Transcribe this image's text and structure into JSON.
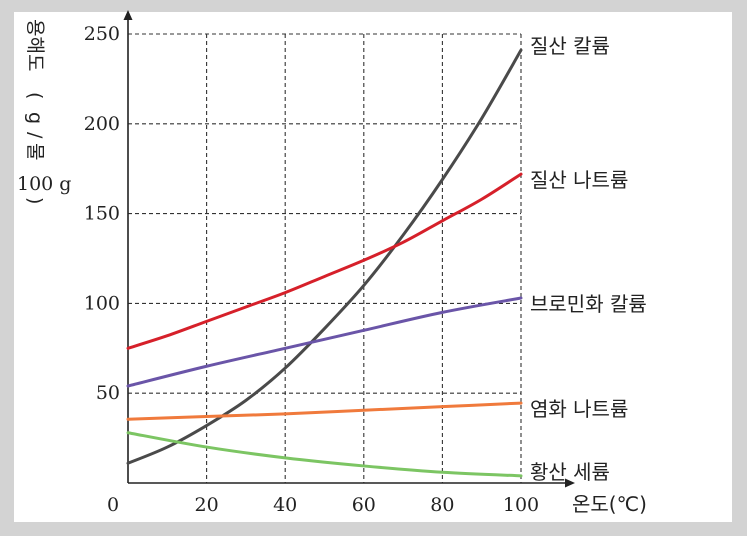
{
  "chart_data": {
    "type": "line",
    "ylabel_parts": [
      "용해도",
      "(",
      "g",
      "/",
      "물",
      "100 g",
      ")"
    ],
    "xlabel": "온도(℃)",
    "origin_label": "0",
    "xlim": [
      0,
      100
    ],
    "ylim": [
      0,
      250
    ],
    "xticks": [
      20,
      40,
      60,
      80,
      100
    ],
    "yticks": [
      50,
      100,
      150,
      200,
      250
    ],
    "grid": true,
    "series": [
      {
        "name": "질산 칼륨",
        "color": "#4a4a4a",
        "x": [
          0,
          10,
          20,
          30,
          40,
          50,
          60,
          70,
          80,
          90,
          100
        ],
        "y": [
          11,
          20,
          32,
          46,
          64,
          86,
          110,
          138,
          169,
          203,
          241
        ]
      },
      {
        "name": "질산 나트륨",
        "color": "#d6202a",
        "x": [
          0,
          10,
          20,
          30,
          40,
          50,
          60,
          70,
          80,
          90,
          100
        ],
        "y": [
          75,
          82,
          90,
          98,
          106,
          115,
          124,
          134,
          146,
          158,
          172
        ]
      },
      {
        "name": "브로민화 칼륨",
        "color": "#6a55a8",
        "x": [
          0,
          20,
          40,
          60,
          80,
          100
        ],
        "y": [
          54,
          65,
          75,
          85,
          95,
          103
        ]
      },
      {
        "name": "염화 나트륨",
        "color": "#f07a3c",
        "x": [
          0,
          20,
          40,
          60,
          80,
          100
        ],
        "y": [
          35.5,
          37,
          38.5,
          40.5,
          42.5,
          44.5
        ]
      },
      {
        "name": "황산 세륨",
        "color": "#7cc563",
        "x": [
          0,
          20,
          40,
          60,
          80,
          100
        ],
        "y": [
          28,
          20,
          14,
          9.5,
          6,
          4
        ]
      }
    ]
  }
}
